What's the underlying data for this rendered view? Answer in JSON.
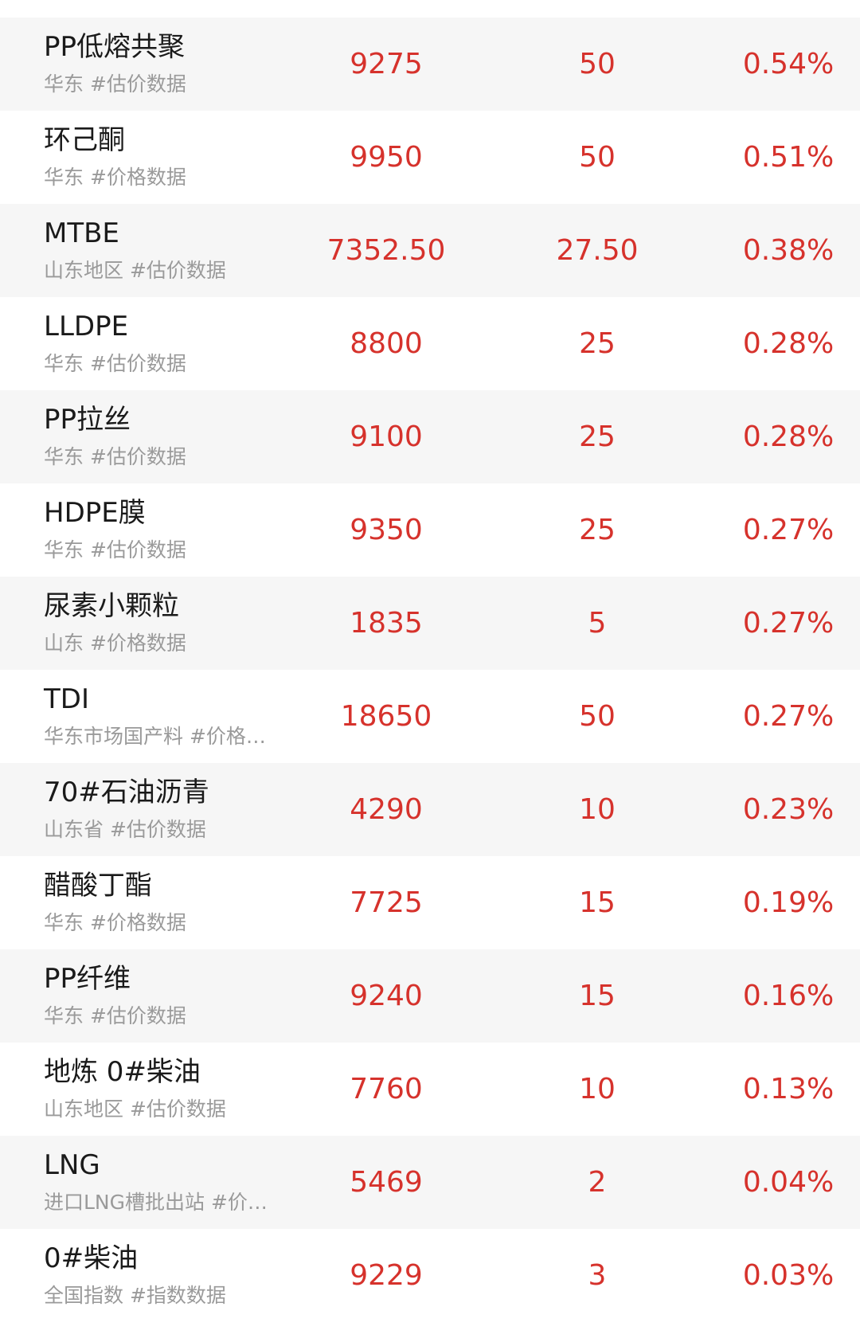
{
  "colors": {
    "up": "#d6322c",
    "title": "#1a1a1a",
    "sub": "#9a9a9a",
    "alt_bg": "#f6f6f6"
  },
  "rows": [
    {
      "name": "PP低熔共聚",
      "sub": "华东 #估价数据",
      "price": "9275",
      "change": "50",
      "pct": "0.54%"
    },
    {
      "name": "环己酮",
      "sub": "华东 #价格数据",
      "price": "9950",
      "change": "50",
      "pct": "0.51%"
    },
    {
      "name": "MTBE",
      "sub": "山东地区 #估价数据",
      "price": "7352.50",
      "change": "27.50",
      "pct": "0.38%"
    },
    {
      "name": "LLDPE",
      "sub": "华东 #估价数据",
      "price": "8800",
      "change": "25",
      "pct": "0.28%"
    },
    {
      "name": "PP拉丝",
      "sub": "华东 #估价数据",
      "price": "9100",
      "change": "25",
      "pct": "0.28%"
    },
    {
      "name": "HDPE膜",
      "sub": "华东 #估价数据",
      "price": "9350",
      "change": "25",
      "pct": "0.27%"
    },
    {
      "name": "尿素小颗粒",
      "sub": "山东 #价格数据",
      "price": "1835",
      "change": "5",
      "pct": "0.27%"
    },
    {
      "name": "TDI",
      "sub": "华东市场国产料 #价格…",
      "price": "18650",
      "change": "50",
      "pct": "0.27%"
    },
    {
      "name": "70#石油沥青",
      "sub": "山东省 #估价数据",
      "price": "4290",
      "change": "10",
      "pct": "0.23%"
    },
    {
      "name": "醋酸丁酯",
      "sub": "华东 #价格数据",
      "price": "7725",
      "change": "15",
      "pct": "0.19%"
    },
    {
      "name": "PP纤维",
      "sub": "华东 #估价数据",
      "price": "9240",
      "change": "15",
      "pct": "0.16%"
    },
    {
      "name": "地炼 0#柴油",
      "sub": "山东地区 #估价数据",
      "price": "7760",
      "change": "10",
      "pct": "0.13%"
    },
    {
      "name": "LNG",
      "sub": "进口LNG槽批出站 #价…",
      "price": "5469",
      "change": "2",
      "pct": "0.04%"
    },
    {
      "name": "0#柴油",
      "sub": "全国指数 #指数数据",
      "price": "9229",
      "change": "3",
      "pct": "0.03%"
    }
  ]
}
